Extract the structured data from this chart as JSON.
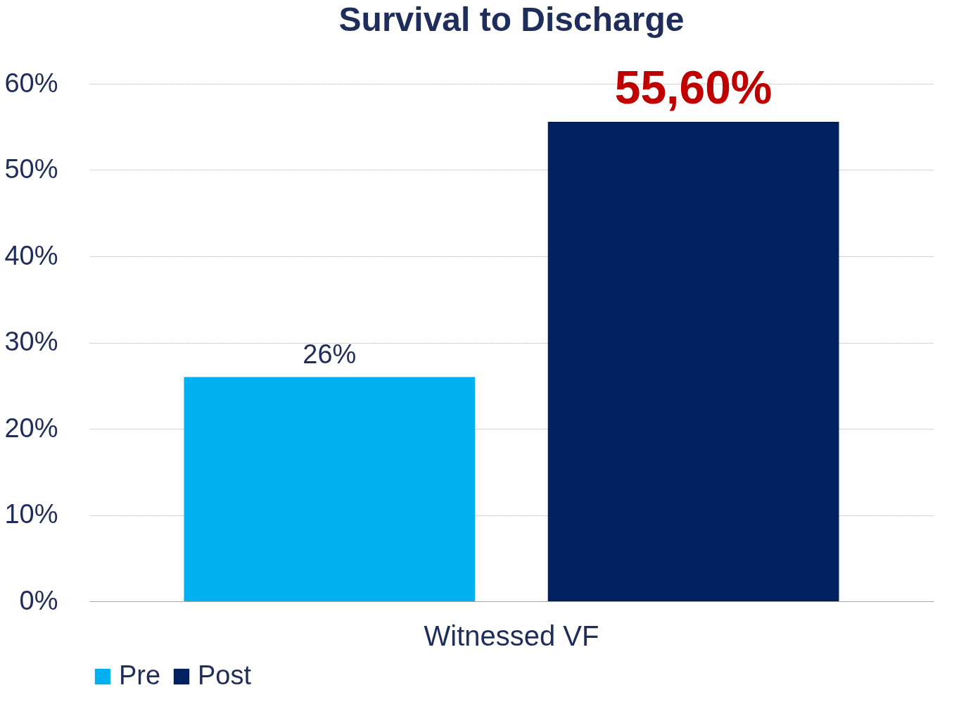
{
  "chart_data": {
    "type": "bar",
    "title": "Survival to Discharge",
    "categories": [
      "Witnessed VF"
    ],
    "series": [
      {
        "name": "Pre",
        "color": "#00b0f0",
        "values": [
          26
        ],
        "value_labels": [
          "26%"
        ]
      },
      {
        "name": "Post",
        "color": "#002060",
        "values": [
          55.6
        ],
        "value_labels": [
          "55,60%"
        ]
      }
    ],
    "ylim": [
      0,
      60
    ],
    "yticks": [
      {
        "value": 0,
        "label": "0%"
      },
      {
        "value": 10,
        "label": "10%"
      },
      {
        "value": 20,
        "label": "20%"
      },
      {
        "value": 30,
        "label": "30%"
      },
      {
        "value": 40,
        "label": "40%"
      },
      {
        "value": 50,
        "label": "50%"
      },
      {
        "value": 60,
        "label": "60%"
      }
    ],
    "grid": "y",
    "legend": "bottom"
  }
}
